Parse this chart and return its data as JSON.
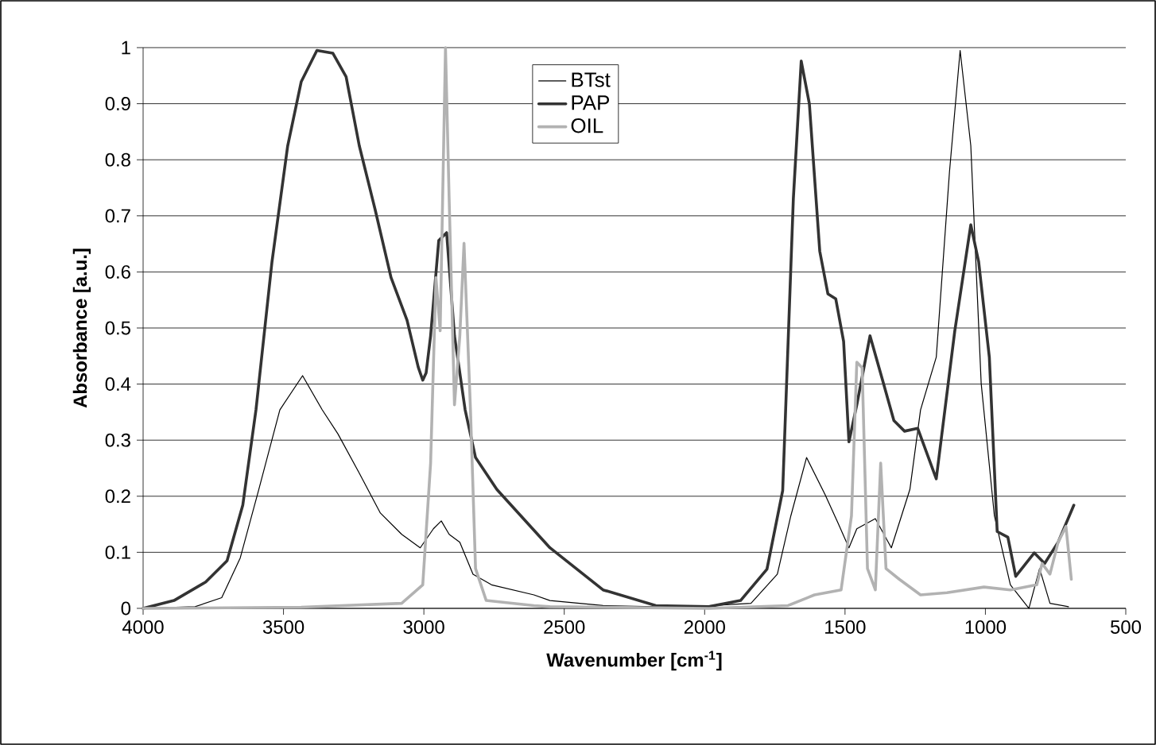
{
  "chart_data": {
    "type": "line",
    "xlabel": "Wavenumber [cm$^{-1}$]",
    "ylabel": "Absorbance [a.u.]",
    "xlim": [
      4000,
      500
    ],
    "xticks": [
      4000,
      3500,
      3000,
      2500,
      2000,
      1500,
      1000,
      500
    ],
    "ylim": [
      0,
      1
    ],
    "yticks": [
      0,
      0.1,
      0.2,
      0.3,
      0.4,
      0.5,
      0.6,
      0.7,
      0.8,
      0.9,
      1
    ],
    "grid": "y",
    "legend": "top",
    "marker": "none",
    "line_style": "solid",
    "series": [
      {
        "name": "BTst",
        "color": "#000000",
        "x": [
          4000,
          3815,
          3720,
          3654,
          3588,
          3513,
          3432,
          3362,
          3306,
          3230,
          3155,
          3079,
          3013,
          2966,
          2938,
          2910,
          2872,
          2825,
          2759,
          2608,
          2551,
          2362,
          2080,
          1835,
          1741,
          1693,
          1637,
          1571,
          1524,
          1486,
          1458,
          1392,
          1335,
          1269,
          1231,
          1175,
          1128,
          1090,
          1052,
          1015,
          968,
          911,
          845,
          807,
          770,
          704
        ],
        "values": [
          0,
          0.003,
          0.019,
          0.09,
          0.212,
          0.354,
          0.415,
          0.354,
          0.311,
          0.241,
          0.17,
          0.132,
          0.108,
          0.142,
          0.156,
          0.132,
          0.118,
          0.061,
          0.042,
          0.024,
          0.014,
          0.005,
          0.002,
          0.009,
          0.061,
          0.165,
          0.269,
          0.203,
          0.151,
          0.108,
          0.142,
          0.16,
          0.108,
          0.212,
          0.354,
          0.448,
          0.778,
          0.995,
          0.825,
          0.401,
          0.165,
          0.042,
          0,
          0.071,
          0.009,
          0.003
        ]
      },
      {
        "name": "PAP",
        "color": "#333333",
        "x": [
          4000,
          3890,
          3777,
          3701,
          3645,
          3598,
          3541,
          3485,
          3437,
          3381,
          3324,
          3277,
          3230,
          3174,
          3117,
          3060,
          3020,
          3004,
          2992,
          2976,
          2947,
          2919,
          2891,
          2853,
          2816,
          2740,
          2551,
          2362,
          2174,
          1985,
          1872,
          1778,
          1722,
          1684,
          1656,
          1627,
          1590,
          1561,
          1533,
          1505,
          1486,
          1458,
          1411,
          1363,
          1326,
          1288,
          1241,
          1175,
          1109,
          1052,
          1024,
          986,
          958,
          920,
          892,
          826,
          789,
          741,
          685
        ],
        "values": [
          0,
          0.014,
          0.047,
          0.085,
          0.184,
          0.354,
          0.618,
          0.825,
          0.939,
          0.995,
          0.99,
          0.948,
          0.825,
          0.712,
          0.59,
          0.514,
          0.43,
          0.407,
          0.42,
          0.486,
          0.656,
          0.67,
          0.486,
          0.354,
          0.269,
          0.212,
          0.108,
          0.033,
          0.005,
          0.003,
          0.014,
          0.07,
          0.21,
          0.731,
          0.976,
          0.9,
          0.637,
          0.561,
          0.552,
          0.476,
          0.297,
          0.363,
          0.486,
          0.401,
          0.335,
          0.316,
          0.321,
          0.231,
          0.495,
          0.684,
          0.618,
          0.448,
          0.137,
          0.127,
          0.057,
          0.099,
          0.08,
          0.118,
          0.184
        ]
      },
      {
        "name": "OIL",
        "color": "#b2b2b2",
        "x": [
          4000,
          3437,
          3079,
          3004,
          2976,
          2957,
          2942,
          2923,
          2910,
          2891,
          2872,
          2857,
          2834,
          2816,
          2778,
          2608,
          2551,
          1985,
          1703,
          1609,
          1514,
          1477,
          1458,
          1439,
          1420,
          1392,
          1373,
          1354,
          1307,
          1231,
          1137,
          1005,
          911,
          817,
          798,
          770,
          741,
          713,
          694
        ],
        "values": [
          0,
          0.002,
          0.009,
          0.042,
          0.259,
          0.59,
          0.495,
          1,
          0.731,
          0.363,
          0.486,
          0.651,
          0.354,
          0.071,
          0.014,
          0.005,
          0.003,
          0,
          0.005,
          0.024,
          0.033,
          0.165,
          0.439,
          0.429,
          0.071,
          0.033,
          0.259,
          0.071,
          0.052,
          0.024,
          0.028,
          0.038,
          0.033,
          0.042,
          0.08,
          0.061,
          0.118,
          0.146,
          0.052
        ]
      }
    ]
  }
}
